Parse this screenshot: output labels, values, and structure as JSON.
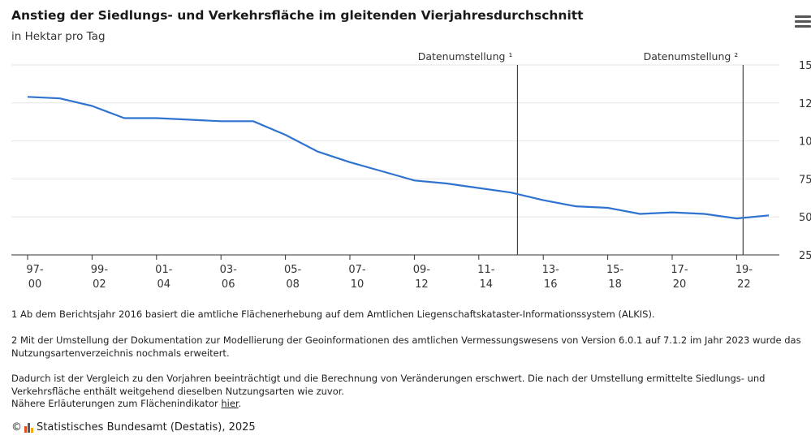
{
  "header": {
    "title": "Anstieg der Siedlungs- und Verkehrsfläche im gleitenden Vierjahresdurchschnitt",
    "subtitle": "in Hektar pro Tag",
    "menu_icon": "hamburger-menu-icon"
  },
  "chart_data": {
    "type": "line",
    "title": "Anstieg der Siedlungs- und Verkehrsfläche im gleitenden Vierjahresdurchschnitt",
    "subtitle": "in Hektar pro Tag",
    "x_categories": [
      "97-00",
      "98-01",
      "99-02",
      "00-03",
      "01-04",
      "02-05",
      "03-06",
      "04-07",
      "05-08",
      "06-09",
      "07-10",
      "08-11",
      "09-12",
      "10-13",
      "11-14",
      "12-15",
      "13-16",
      "14-17",
      "15-18",
      "16-19",
      "17-20",
      "18-21",
      "19-22",
      "20-23"
    ],
    "x_tick_labels": [
      {
        "top": "97-",
        "bottom": "00"
      },
      {
        "top": "99-",
        "bottom": "02"
      },
      {
        "top": "01-",
        "bottom": "04"
      },
      {
        "top": "03-",
        "bottom": "06"
      },
      {
        "top": "05-",
        "bottom": "08"
      },
      {
        "top": "07-",
        "bottom": "10"
      },
      {
        "top": "09-",
        "bottom": "12"
      },
      {
        "top": "11-",
        "bottom": "14"
      },
      {
        "top": "13-",
        "bottom": "16"
      },
      {
        "top": "15-",
        "bottom": "18"
      },
      {
        "top": "17-",
        "bottom": "20"
      },
      {
        "top": "19-",
        "bottom": "22"
      }
    ],
    "series": [
      {
        "values": [
          129,
          128,
          123,
          115,
          115,
          114,
          113,
          113,
          104,
          93,
          86,
          80,
          74,
          72,
          69,
          66,
          61,
          57,
          56,
          52,
          53,
          52,
          49,
          51
        ]
      }
    ],
    "y_ticks": [
      25,
      50,
      75,
      100,
      125,
      150
    ],
    "ylim": [
      25,
      150
    ],
    "grid": true,
    "annotations": [
      {
        "label": "Datenumstellung ¹",
        "after_category_index": 15
      },
      {
        "label": "Datenumstellung ²",
        "after_category_index": 22
      }
    ],
    "line_color": "#2f73d0"
  },
  "footnotes": {
    "note1": "1 Ab dem Berichtsjahr 2016 basiert die amtliche Flächenerhebung auf dem Amtlichen Liegenschaftskataster-Informationssystem (ALKIS).",
    "note2": "2 Mit der Umstellung der Dokumentation zur Modellierung der Geoinformationen des amtlichen Vermessungswesens von Version 6.0.1 auf 7.1.2 im Jahr 2023 wurde das Nutzungsartenverzeichnis nochmals erweitert.",
    "note3_line1": "Dadurch ist der Vergleich zu den Vorjahren beeinträchtigt und die Berechnung von Veränderungen erschwert. Die nach der Umstellung ermittelte Siedlungs- und Verkehrsfläche enthält weitgehend dieselben Nutzungsarten wie zuvor.",
    "note3_line2_prefix": "Nähere Erläuterungen zum Flächenindikator ",
    "note3_link": "hier",
    "note3_suffix": "."
  },
  "copyright": {
    "symbol": "©",
    "text": "Statistisches Bundesamt (Destatis), 2025",
    "logo_icon": "destatis-logo-icon"
  }
}
